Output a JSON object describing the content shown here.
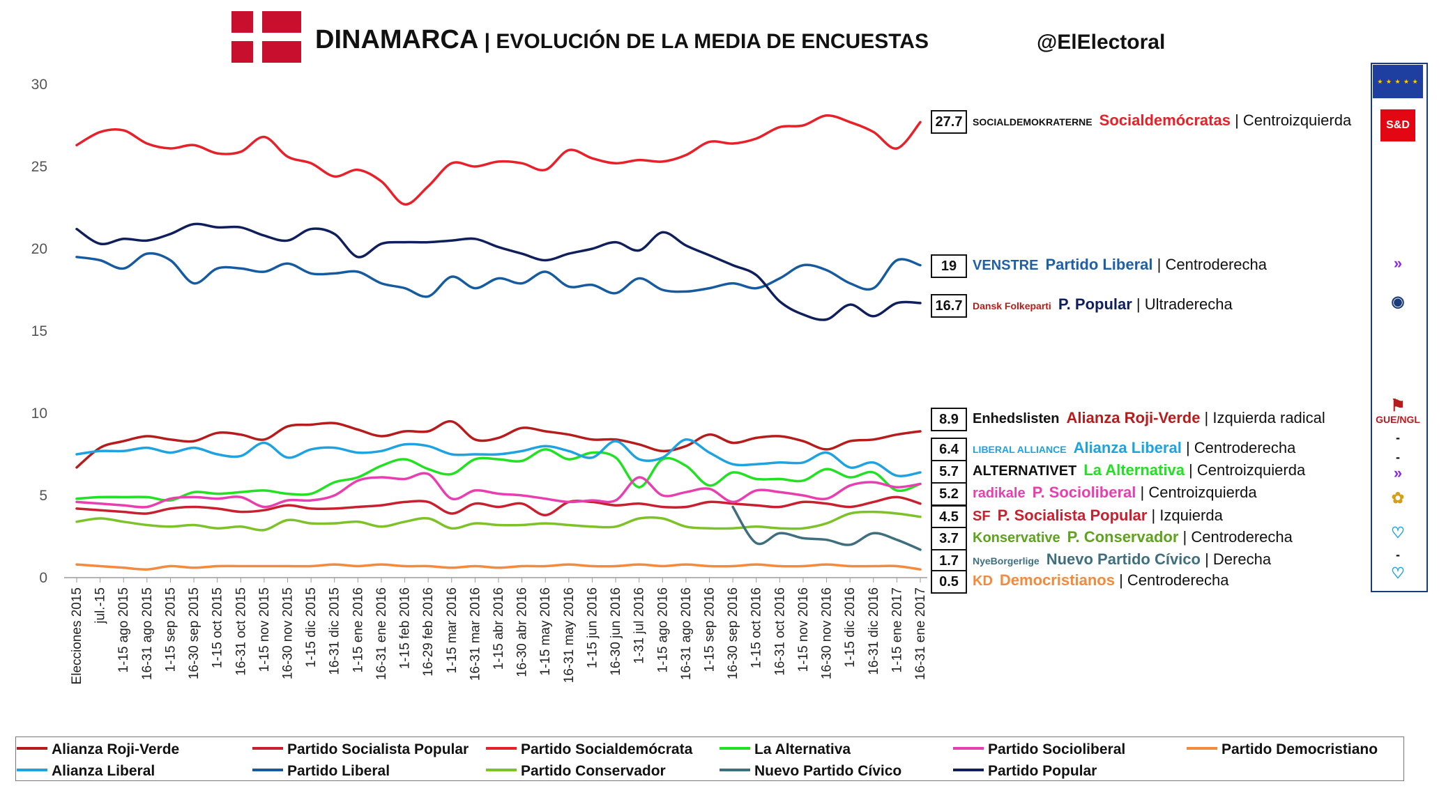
{
  "header": {
    "title_main": "DINAMARCA",
    "title_sep": " | ",
    "title_sub": "EVOLUCIÓN DE LA MEDIA DE ENCUESTAS",
    "handle": "@ElElectoral"
  },
  "sidebar": {
    "sd_label": "S&D",
    "gue_label": "GUE/NGL",
    "dashes": [
      "-",
      "-",
      "-"
    ]
  },
  "colors": {
    "roji_verde": "#b71c1c",
    "socialista_popular": "#c8202f",
    "socialdemocrata": "#e8202a",
    "alternativa": "#22e022",
    "socioliberal": "#e83fb0",
    "democristiano": "#f48a3c",
    "alianza_liberal": "#1ea2e0",
    "liberal": "#165ba0",
    "conservador": "#7ec22a",
    "nuevo_civico": "#3f6f7f",
    "popular": "#0f1f5c"
  },
  "party_labels": [
    {
      "value": "27.7",
      "logo": "SOCIALDEMOKRATERNE",
      "name": "Socialdemócratas",
      "ideology": " | Centroizquierda",
      "color": "#e8202a",
      "logo_color": "#111111"
    },
    {
      "value": "19",
      "logo": "VENSTRE",
      "name": "Partido Liberal",
      "ideology": " | Centroderecha",
      "color": "#1f5fa8",
      "logo_color": "#1f5fa8"
    },
    {
      "value": "16.7",
      "logo": "Dansk Folkeparti",
      "name": "P. Popular",
      "ideology": " | Ultraderecha",
      "color": "#0f1f5c",
      "logo_color": "#b71c1c"
    },
    {
      "value": "8.9",
      "logo": "Enhedslisten",
      "name": "Alianza Roji-Verde",
      "ideology": " | Izquierda radical",
      "color": "#b71c1c",
      "logo_color": "#111111"
    },
    {
      "value": "6.4",
      "logo": "LIBERAL ALLIANCE",
      "name": "Alianza Liberal",
      "ideology": " | Centroderecha",
      "color": "#1ea2e0",
      "logo_color": "#1ea2e0"
    },
    {
      "value": "5.7",
      "logo": "ALTERNATIVET",
      "name": "La Alternativa",
      "ideology": " | Centroizquierda",
      "color": "#22e022",
      "logo_color": "#111111"
    },
    {
      "value": "5.2",
      "logo": "radikale",
      "name": "P. Socioliberal",
      "ideology": " | Centroizquierda",
      "color": "#e83fb0",
      "logo_color": "#e83fb0"
    },
    {
      "value": "4.5",
      "logo": "SF",
      "name": "P. Socialista Popular",
      "ideology": " | Izquierda",
      "color": "#c8202f",
      "logo_color": "#c8202f"
    },
    {
      "value": "3.7",
      "logo": "Konservative",
      "name": "P. Conservador",
      "ideology": " | Centroderecha",
      "color": "#5ea21e",
      "logo_color": "#5ea21e"
    },
    {
      "value": "1.7",
      "logo": "NyeBorgerlige",
      "name": "Nuevo Partido Cívico",
      "ideology": " | Derecha",
      "color": "#3f6f7f",
      "logo_color": "#3f6f7f"
    },
    {
      "value": "0.5",
      "logo": "KD",
      "name": "Democristianos",
      "ideology": " | Centroderecha",
      "color": "#f48a3c",
      "logo_color": "#f48a3c"
    }
  ],
  "chart_data": {
    "type": "line",
    "title": "DINAMARCA | EVOLUCIÓN DE LA MEDIA DE ENCUESTAS",
    "ylim": [
      0,
      30
    ],
    "yticks": [
      0,
      5,
      10,
      15,
      20,
      25,
      30
    ],
    "grid": false,
    "legend_position": "bottom",
    "x": [
      "Elecciones 2015",
      "jul.-15",
      "1-15 ago 2015",
      "16-31 ago 2015",
      "1-15 sep 2015",
      "16-30 sep 2015",
      "1-15 oct 2015",
      "16-31 oct 2015",
      "1-15 nov 2015",
      "16-30 nov 2015",
      "1-15 dic 2015",
      "16-31 dic 2015",
      "1-15 ene 2016",
      "16-31 ene 2016",
      "1-15 feb 2016",
      "16-29 feb 2016",
      "1-15 mar 2016",
      "16-31 mar 2016",
      "1-15 abr 2016",
      "16-30 abr 2016",
      "1-15 may 2016",
      "16-31 may 2016",
      "1-15 jun 2016",
      "16-30 jun 2016",
      "1-31 jul 2016",
      "1-15 ago 2016",
      "16-31 ago 2016",
      "1-15 sep 2016",
      "16-30 sep 2016",
      "1-15 oct 2016",
      "16-31 oct 2016",
      "1-15 nov 2016",
      "16-30 nov 2016",
      "1-15 dic 2016",
      "16-31 dic 2016",
      "1-15 ene 2017",
      "16-31 ene 2017"
    ],
    "series": [
      {
        "name": "Alianza Roji-Verde",
        "color": "#b71c1c",
        "values": [
          6.7,
          7.9,
          8.3,
          8.6,
          8.4,
          8.3,
          8.8,
          8.7,
          8.4,
          9.2,
          9.3,
          9.4,
          9.0,
          8.6,
          8.9,
          8.9,
          9.5,
          8.4,
          8.5,
          9.1,
          8.9,
          8.7,
          8.4,
          8.4,
          8.1,
          7.7,
          8.0,
          8.7,
          8.2,
          8.5,
          8.6,
          8.3,
          7.8,
          8.3,
          8.4,
          8.7,
          8.9
        ]
      },
      {
        "name": "Partido Socialista Popular",
        "color": "#c8202f",
        "values": [
          4.2,
          4.1,
          4.0,
          3.9,
          4.2,
          4.3,
          4.2,
          4.0,
          4.1,
          4.4,
          4.2,
          4.2,
          4.3,
          4.4,
          4.6,
          4.6,
          3.9,
          4.5,
          4.3,
          4.5,
          3.8,
          4.6,
          4.6,
          4.4,
          4.5,
          4.3,
          4.3,
          4.6,
          4.5,
          4.4,
          4.3,
          4.6,
          4.5,
          4.3,
          4.6,
          4.9,
          4.5
        ]
      },
      {
        "name": "Partido Socialdemócrata",
        "color": "#e8202a",
        "values": [
          26.3,
          27.1,
          27.2,
          26.4,
          26.1,
          26.3,
          25.8,
          25.9,
          26.8,
          25.6,
          25.2,
          24.4,
          24.8,
          24.1,
          22.7,
          23.8,
          25.2,
          25.0,
          25.3,
          25.2,
          24.8,
          26.0,
          25.5,
          25.2,
          25.4,
          25.3,
          25.7,
          26.5,
          26.4,
          26.7,
          27.4,
          27.5,
          28.1,
          27.7,
          27.1,
          26.1,
          27.7
        ]
      },
      {
        "name": "La Alternativa",
        "color": "#22e022",
        "values": [
          4.8,
          4.9,
          4.9,
          4.9,
          4.7,
          5.2,
          5.1,
          5.2,
          5.3,
          5.1,
          5.1,
          5.8,
          6.1,
          6.8,
          7.2,
          6.6,
          6.3,
          7.2,
          7.2,
          7.1,
          7.8,
          7.2,
          7.6,
          7.3,
          5.5,
          7.2,
          6.8,
          5.6,
          6.4,
          6.0,
          6.0,
          5.9,
          6.6,
          6.1,
          6.4,
          5.3,
          5.7
        ]
      },
      {
        "name": "Partido Socioliberal",
        "color": "#e83fb0",
        "values": [
          4.6,
          4.5,
          4.4,
          4.3,
          4.8,
          4.9,
          4.8,
          4.9,
          4.3,
          4.7,
          4.7,
          5.0,
          5.9,
          6.1,
          6.0,
          6.3,
          4.8,
          5.3,
          5.1,
          5.0,
          4.8,
          4.6,
          4.7,
          4.7,
          6.1,
          5.0,
          5.2,
          5.4,
          4.6,
          5.3,
          5.2,
          5.0,
          4.8,
          5.6,
          5.8,
          5.5,
          5.7
        ]
      },
      {
        "name": "Partido Democristiano",
        "color": "#f48a3c",
        "values": [
          0.8,
          0.7,
          0.6,
          0.5,
          0.7,
          0.6,
          0.7,
          0.7,
          0.7,
          0.7,
          0.7,
          0.8,
          0.7,
          0.8,
          0.7,
          0.7,
          0.6,
          0.7,
          0.6,
          0.7,
          0.7,
          0.8,
          0.7,
          0.7,
          0.8,
          0.7,
          0.8,
          0.7,
          0.7,
          0.8,
          0.7,
          0.7,
          0.8,
          0.7,
          0.7,
          0.7,
          0.5
        ]
      },
      {
        "name": "Alianza Liberal",
        "color": "#1ea2e0",
        "values": [
          7.5,
          7.7,
          7.7,
          7.9,
          7.6,
          7.9,
          7.5,
          7.4,
          8.2,
          7.3,
          7.8,
          7.9,
          7.6,
          7.7,
          8.1,
          8.0,
          7.5,
          7.5,
          7.5,
          7.7,
          8.0,
          7.7,
          7.3,
          8.3,
          7.2,
          7.3,
          8.4,
          7.6,
          6.9,
          6.9,
          7.0,
          7.0,
          7.6,
          6.7,
          7.0,
          6.2,
          6.4
        ]
      },
      {
        "name": "Partido Liberal",
        "color": "#165ba0",
        "values": [
          19.5,
          19.3,
          18.8,
          19.7,
          19.3,
          17.9,
          18.8,
          18.8,
          18.6,
          19.1,
          18.5,
          18.5,
          18.6,
          17.9,
          17.6,
          17.1,
          18.3,
          17.6,
          18.2,
          17.9,
          18.6,
          17.7,
          17.8,
          17.3,
          18.2,
          17.5,
          17.4,
          17.6,
          17.9,
          17.6,
          18.2,
          19.0,
          18.7,
          17.9,
          17.6,
          19.3,
          19.0
        ]
      },
      {
        "name": "Partido Conservador",
        "color": "#7ec22a",
        "values": [
          3.4,
          3.6,
          3.4,
          3.2,
          3.1,
          3.2,
          3.0,
          3.1,
          2.9,
          3.5,
          3.3,
          3.3,
          3.4,
          3.1,
          3.4,
          3.6,
          3.0,
          3.3,
          3.2,
          3.2,
          3.3,
          3.2,
          3.1,
          3.1,
          3.6,
          3.6,
          3.1,
          3.0,
          3.0,
          3.1,
          3.0,
          3.0,
          3.3,
          3.9,
          4.0,
          3.9,
          3.7
        ]
      },
      {
        "name": "Nuevo Partido Cívico",
        "color": "#3f6f7f",
        "values": [
          null,
          null,
          null,
          null,
          null,
          null,
          null,
          null,
          null,
          null,
          null,
          null,
          null,
          null,
          null,
          null,
          null,
          null,
          null,
          null,
          null,
          null,
          null,
          null,
          null,
          null,
          null,
          null,
          4.3,
          2.1,
          2.7,
          2.4,
          2.3,
          2.0,
          2.7,
          2.3,
          1.7
        ]
      },
      {
        "name": "Partido Popular",
        "color": "#0f1f5c",
        "values": [
          21.2,
          20.3,
          20.6,
          20.5,
          20.9,
          21.5,
          21.3,
          21.3,
          20.8,
          20.5,
          21.2,
          20.9,
          19.5,
          20.3,
          20.4,
          20.4,
          20.5,
          20.6,
          20.1,
          19.7,
          19.3,
          19.7,
          20.0,
          20.4,
          19.9,
          21.0,
          20.2,
          19.6,
          19.0,
          18.4,
          16.8,
          16.0,
          15.7,
          16.6,
          15.9,
          16.7,
          16.7
        ]
      }
    ]
  },
  "legend_items": [
    {
      "label": "Alianza Roji-Verde",
      "color": "#b71c1c"
    },
    {
      "label": "Partido Socialista Popular",
      "color": "#c8202f"
    },
    {
      "label": "Partido Socialdemócrata",
      "color": "#e8202a"
    },
    {
      "label": "La Alternativa",
      "color": "#22e022"
    },
    {
      "label": "Partido Socioliberal",
      "color": "#e83fb0"
    },
    {
      "label": "Partido Democristiano",
      "color": "#f48a3c"
    },
    {
      "label": "Alianza Liberal",
      "color": "#1ea2e0"
    },
    {
      "label": "Partido Liberal",
      "color": "#165ba0"
    },
    {
      "label": "Partido Conservador",
      "color": "#7ec22a"
    },
    {
      "label": "Nuevo Partido Cívico",
      "color": "#3f6f7f"
    },
    {
      "label": "Partido Popular",
      "color": "#0f1f5c"
    }
  ]
}
